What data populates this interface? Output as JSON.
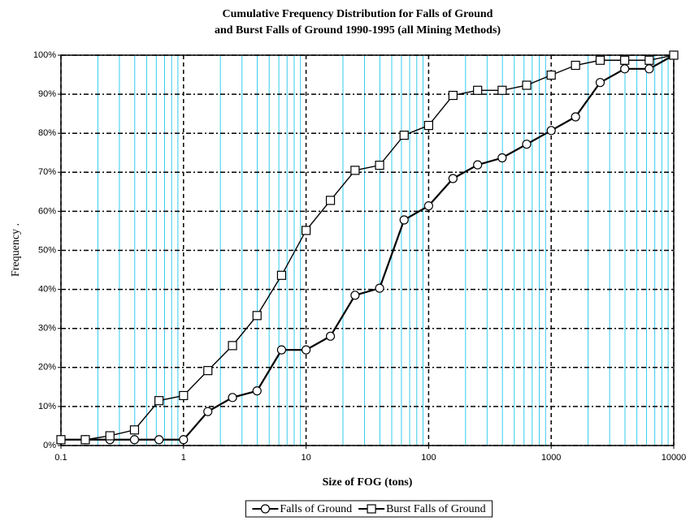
{
  "chart_data": {
    "type": "line",
    "title": [
      "Cumulative Frequency Distribution for Falls of Ground",
      "and Burst Falls of Ground 1990-1995 (all Mining Methods)"
    ],
    "x_label": "Size of FOG (tons)",
    "y_label": "Frequency .",
    "x": [
      0.1,
      0.158,
      0.251,
      0.398,
      0.631,
      1,
      1.58,
      2.51,
      3.98,
      6.31,
      10,
      15.8,
      25.1,
      39.8,
      63.1,
      100,
      158,
      251,
      398,
      631,
      1000,
      1580,
      2510,
      3980,
      6310,
      10000
    ],
    "series": [
      {
        "name": "Falls of Ground",
        "color": "#000000",
        "marker": "circle",
        "values": [
          1.5,
          1.5,
          1.5,
          1.5,
          1.5,
          1.5,
          8.7,
          12.3,
          14,
          24.5,
          24.5,
          28,
          38.5,
          40.3,
          57.8,
          61.4,
          68.4,
          71.9,
          73.7,
          77.2,
          80.7,
          84.2,
          93,
          96.5,
          96.5,
          100
        ]
      },
      {
        "name": "Burst Falls of Ground",
        "color": "#000000",
        "marker": "square",
        "values": [
          1.5,
          1.5,
          2.5,
          4,
          11.5,
          12.8,
          19.2,
          25.6,
          33.3,
          43.6,
          55.1,
          62.8,
          70.5,
          71.8,
          79.5,
          82,
          89.7,
          91,
          91,
          92.3,
          94.9,
          97.4,
          98.7,
          98.7,
          98.7,
          100
        ]
      }
    ],
    "xscale": "log",
    "xlim": [
      0.1,
      10000
    ],
    "xticks": [
      0.1,
      1,
      10,
      100,
      1000,
      10000
    ],
    "ylim": [
      0,
      100
    ],
    "yticks": [
      {
        "value": 0,
        "label": "0%"
      },
      {
        "value": 10,
        "label": "10%"
      },
      {
        "value": 20,
        "label": "20%"
      },
      {
        "value": 30,
        "label": "30%"
      },
      {
        "value": 40,
        "label": "40%"
      },
      {
        "value": 50,
        "label": "50%"
      },
      {
        "value": 60,
        "label": "60%"
      },
      {
        "value": 70,
        "label": "70%"
      },
      {
        "value": 80,
        "label": "80%"
      },
      {
        "value": 90,
        "label": "90%"
      },
      {
        "value": 100,
        "label": "100%"
      }
    ],
    "grid": true,
    "minor_grid": true,
    "legend": "bottom"
  }
}
